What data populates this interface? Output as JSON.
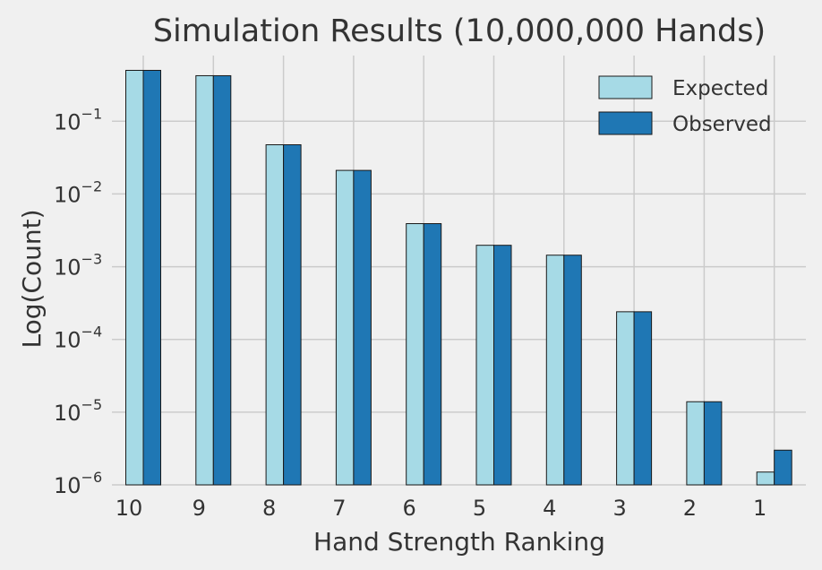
{
  "chart_data": {
    "type": "bar",
    "title": "Simulation Results (10,000,000 Hands)",
    "xlabel": "Hand Strength Ranking",
    "ylabel": "Log(Count)",
    "yscale": "log",
    "ylim": [
      1e-06,
      0.8
    ],
    "yticks": [
      {
        "value": 1e-06,
        "base": "10",
        "exp": "−6"
      },
      {
        "value": 1e-05,
        "base": "10",
        "exp": "−5"
      },
      {
        "value": 0.0001,
        "base": "10",
        "exp": "−4"
      },
      {
        "value": 0.001,
        "base": "10",
        "exp": "−3"
      },
      {
        "value": 0.01,
        "base": "10",
        "exp": "−2"
      },
      {
        "value": 0.1,
        "base": "10",
        "exp": "−1"
      }
    ],
    "categories": [
      "10",
      "9",
      "8",
      "7",
      "6",
      "5",
      "4",
      "3",
      "2",
      "1"
    ],
    "series": [
      {
        "name": "Expected",
        "color": "#a6dae6",
        "values": [
          0.501,
          0.423,
          0.0475,
          0.0211,
          0.00391,
          0.00197,
          0.00144,
          0.00024,
          1.39e-05,
          1.5e-06
        ]
      },
      {
        "name": "Observed",
        "color": "#1f77b4",
        "values": [
          0.501,
          0.423,
          0.0475,
          0.0211,
          0.00391,
          0.00197,
          0.00144,
          0.00024,
          1.39e-05,
          3e-06
        ]
      }
    ],
    "grid": true,
    "legend_position": "top-right",
    "background": "#f0f0f0"
  }
}
